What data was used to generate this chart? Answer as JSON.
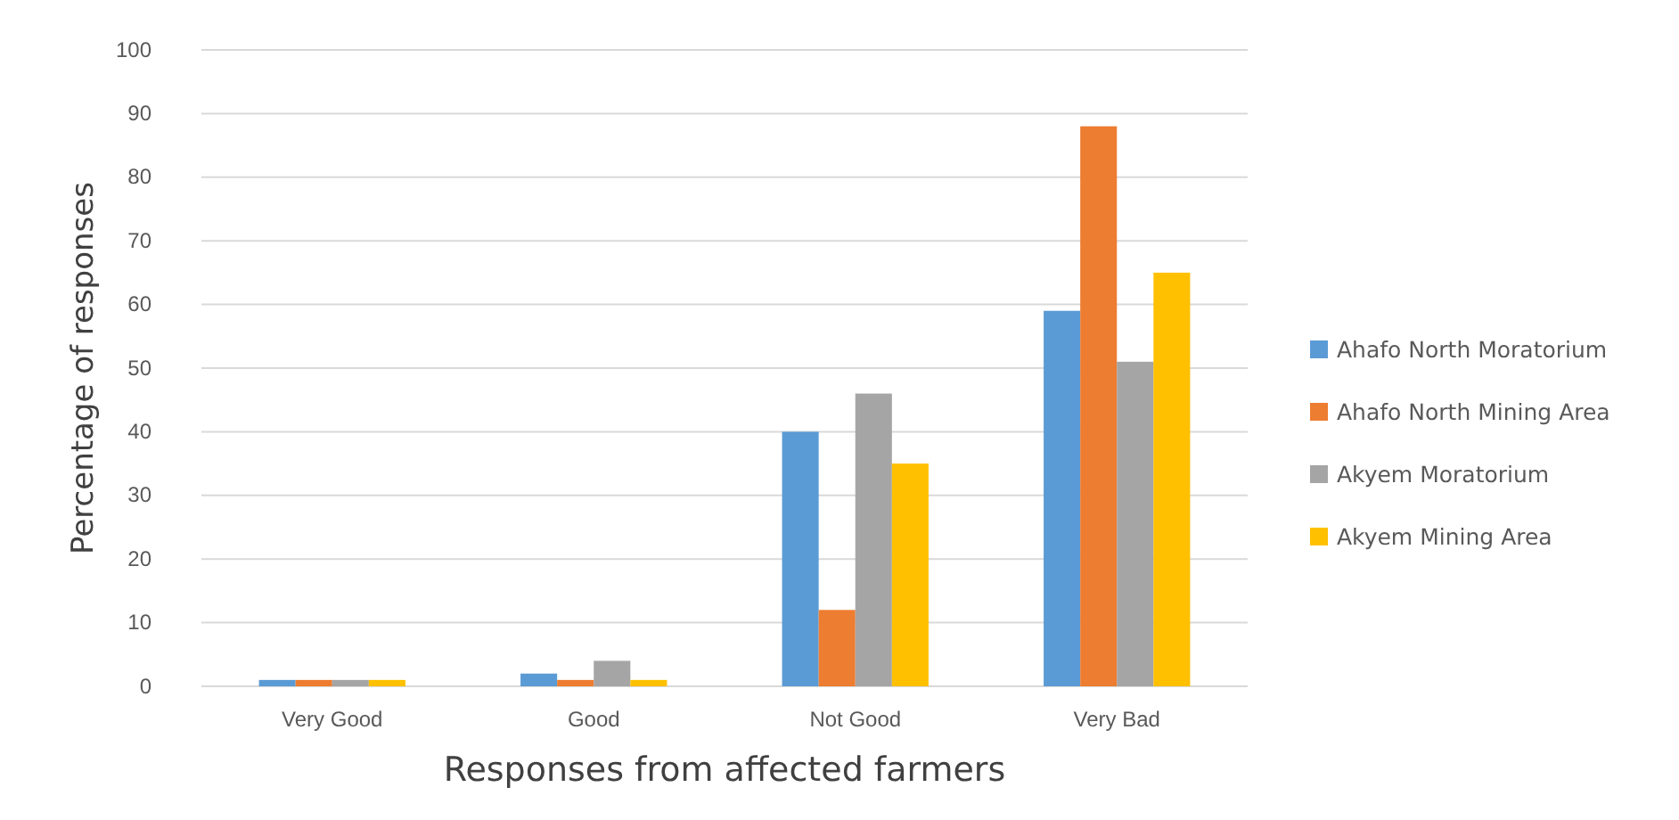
{
  "chart_data": {
    "type": "bar",
    "xlabel": "Responses from affected farmers",
    "ylabel": "Percentage of responses",
    "categories": [
      "Very Good",
      "Good",
      "Not Good",
      "Very Bad"
    ],
    "series": [
      {
        "name": "Ahafo North Moratorium",
        "color": "#5b9bd5",
        "values": [
          1,
          2,
          40,
          59
        ]
      },
      {
        "name": "Ahafo North Mining Area",
        "color": "#ed7d31",
        "values": [
          1,
          1,
          12,
          88
        ]
      },
      {
        "name": "Akyem Moratorium",
        "color": "#a5a5a5",
        "values": [
          1,
          4,
          46,
          51
        ]
      },
      {
        "name": "Akyem Mining Area",
        "color": "#ffc000",
        "values": [
          1,
          1,
          35,
          65
        ]
      }
    ],
    "ylim": [
      0,
      100
    ],
    "yticks": [
      0,
      10,
      20,
      30,
      40,
      50,
      60,
      70,
      80,
      90,
      100
    ],
    "grid": "y",
    "legend": "right"
  }
}
